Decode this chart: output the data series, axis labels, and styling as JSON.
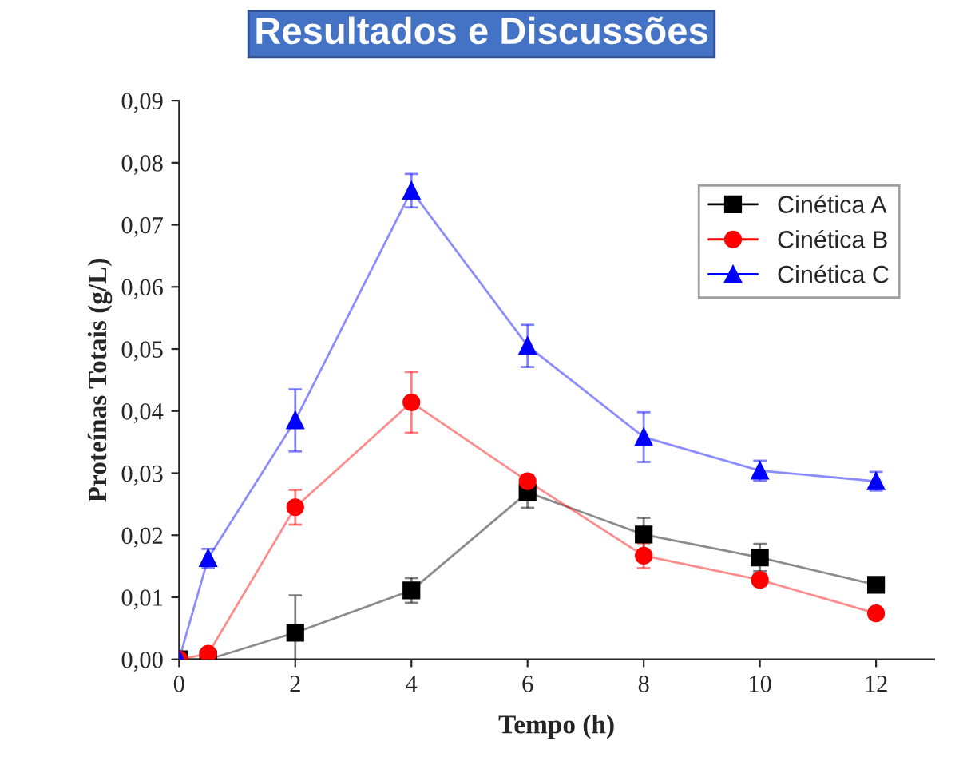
{
  "chart_data": {
    "type": "line",
    "title": "Resultados e Discussões",
    "xlabel": "Tempo (h)",
    "ylabel": "Proteínas Totais (g/L)",
    "x": [
      0,
      0.5,
      2,
      4,
      6,
      8,
      10,
      12
    ],
    "series": [
      {
        "name": "Cinética A",
        "color": "#000000",
        "marker": "square",
        "values": [
          0,
          0,
          0.0043,
          0.0111,
          0.0269,
          0.0201,
          0.0164,
          0.012
        ],
        "errors": [
          null,
          null,
          0.006,
          0.002,
          0.0025,
          0.0027,
          0.0022,
          null
        ]
      },
      {
        "name": "Cinética B",
        "color": "#ff0000",
        "marker": "circle",
        "values": [
          0,
          0.0009,
          0.0245,
          0.0414,
          0.0287,
          0.0167,
          0.0128,
          0.0074
        ],
        "errors": [
          null,
          null,
          0.0028,
          0.0049,
          0.001,
          0.002,
          0.001,
          null
        ]
      },
      {
        "name": "Cinética C",
        "color": "#0000ff",
        "marker": "triangle",
        "values": [
          0,
          0.0163,
          0.0385,
          0.0755,
          0.0505,
          0.0358,
          0.0304,
          0.0287
        ],
        "errors": [
          null,
          0.0015,
          0.005,
          0.0027,
          0.0034,
          0.004,
          0.0016,
          0.0015
        ]
      }
    ],
    "xlim": [
      0,
      13
    ],
    "xticks": [
      0,
      2,
      4,
      6,
      8,
      10,
      12
    ],
    "ylim": [
      0,
      0.09
    ],
    "yticks": [
      {
        "value": 0,
        "label": "0,00"
      },
      {
        "value": 0.01,
        "label": "0,01"
      },
      {
        "value": 0.02,
        "label": "0,02"
      },
      {
        "value": 0.03,
        "label": "0,03"
      },
      {
        "value": 0.04,
        "label": "0,04"
      },
      {
        "value": 0.05,
        "label": "0,05"
      },
      {
        "value": 0.06,
        "label": "0,06"
      },
      {
        "value": 0.07,
        "label": "0,07"
      },
      {
        "value": 0.08,
        "label": "0,08"
      },
      {
        "value": 0.09,
        "label": "0,09"
      }
    ],
    "legend": "top right",
    "grid": false,
    "line_style": "solid"
  }
}
